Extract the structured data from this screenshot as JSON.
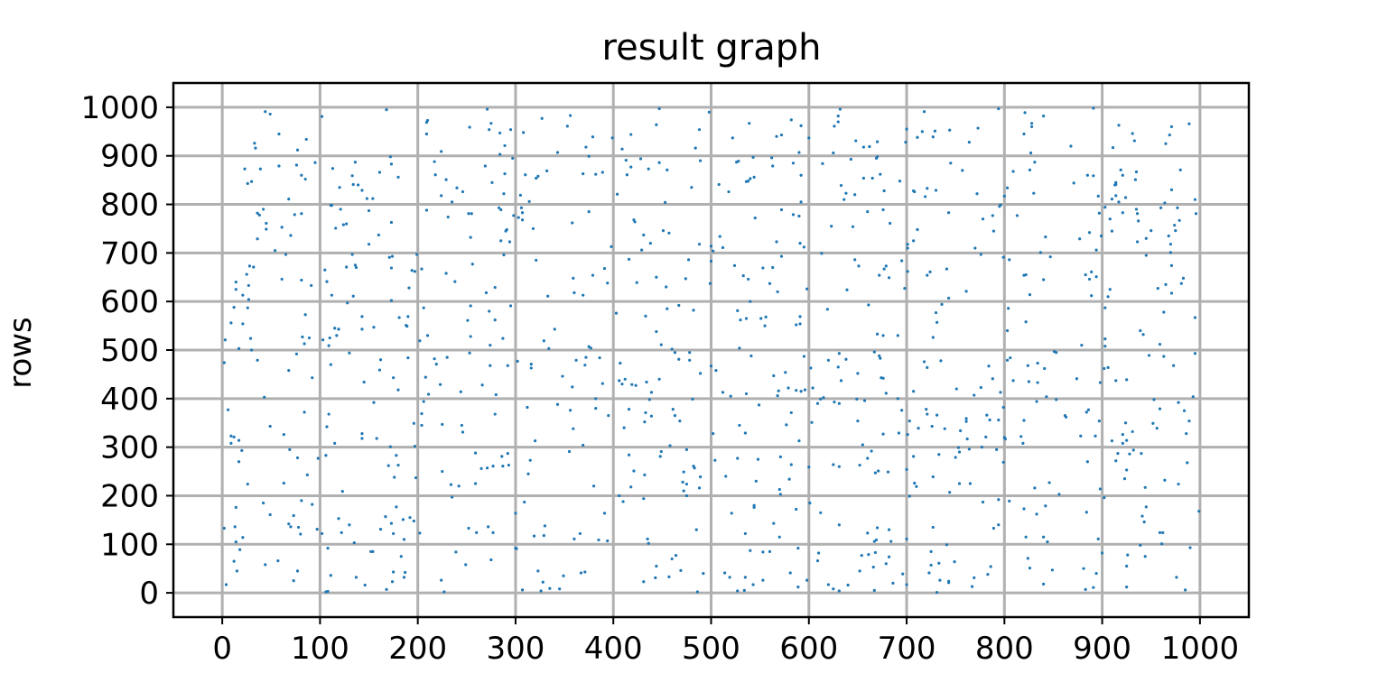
{
  "chart_data": {
    "type": "scatter",
    "title": "result graph",
    "xlabel": "",
    "ylabel": "rows",
    "xlim": [
      -50,
      1050
    ],
    "ylim": [
      -50,
      1050
    ],
    "xticks": [
      0,
      100,
      200,
      300,
      400,
      500,
      600,
      700,
      800,
      900,
      1000
    ],
    "yticks": [
      0,
      100,
      200,
      300,
      400,
      500,
      600,
      700,
      800,
      900,
      1000
    ],
    "xtick_labels": [
      "0",
      "100",
      "200",
      "300",
      "400",
      "500",
      "600",
      "700",
      "800",
      "900",
      "1000"
    ],
    "ytick_labels": [
      "0",
      "100",
      "200",
      "300",
      "400",
      "500",
      "600",
      "700",
      "800",
      "900",
      "1000"
    ],
    "grid": true,
    "marker_color": "#1f77b4",
    "point_count": 1000,
    "x": [],
    "y": [],
    "note_points": "approx. 1000 uniformly scattered points, x and y each in 0-1000 (exact coordinates not readable)"
  }
}
